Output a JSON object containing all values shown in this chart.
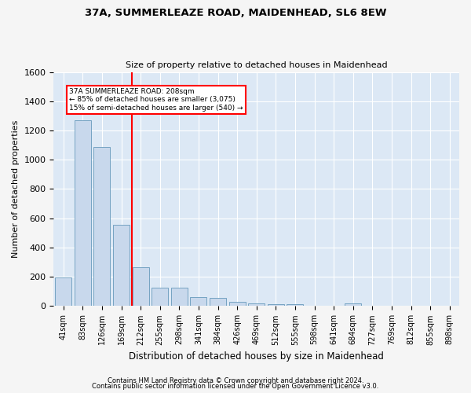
{
  "title": "37A, SUMMERLEAZE ROAD, MAIDENHEAD, SL6 8EW",
  "subtitle": "Size of property relative to detached houses in Maidenhead",
  "xlabel": "Distribution of detached houses by size in Maidenhead",
  "ylabel": "Number of detached properties",
  "bar_color": "#c8d8ec",
  "bar_edge_color": "#6699bb",
  "background_color": "#dce8f5",
  "fig_background": "#f5f5f5",
  "grid_color": "#ffffff",
  "categories": [
    "41sqm",
    "83sqm",
    "126sqm",
    "169sqm",
    "212sqm",
    "255sqm",
    "298sqm",
    "341sqm",
    "384sqm",
    "426sqm",
    "469sqm",
    "512sqm",
    "555sqm",
    "598sqm",
    "641sqm",
    "684sqm",
    "727sqm",
    "769sqm",
    "812sqm",
    "855sqm",
    "898sqm"
  ],
  "values": [
    195,
    1270,
    1090,
    555,
    265,
    125,
    125,
    60,
    55,
    30,
    20,
    15,
    15,
    0,
    0,
    20,
    0,
    0,
    0,
    0,
    0
  ],
  "property_label": "37A SUMMERLEAZE ROAD: 208sqm",
  "annotation_line1": "← 85% of detached houses are smaller (3,075)",
  "annotation_line2": "15% of semi-detached houses are larger (540) →",
  "vline_x": 3.55,
  "ylim": [
    0,
    1600
  ],
  "yticks": [
    0,
    200,
    400,
    600,
    800,
    1000,
    1200,
    1400,
    1600
  ],
  "footnote1": "Contains HM Land Registry data © Crown copyright and database right 2024.",
  "footnote2": "Contains public sector information licensed under the Open Government Licence v3.0."
}
